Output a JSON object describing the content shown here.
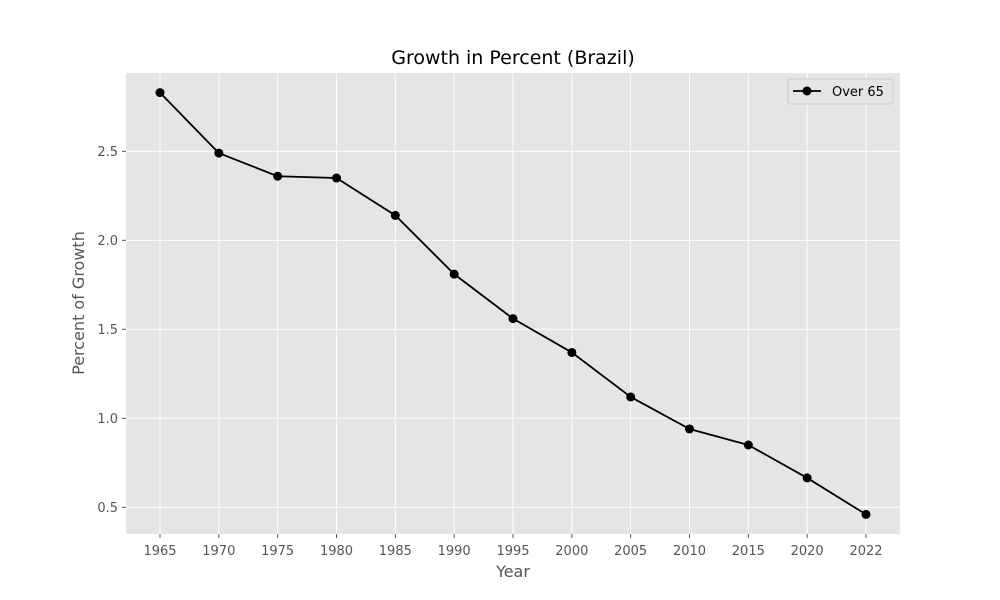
{
  "chart_data": {
    "type": "line",
    "title": "Growth in Percent (Brazil)",
    "xlabel": "Year",
    "ylabel": "Percent of Growth",
    "categories": [
      "1965",
      "1970",
      "1975",
      "1980",
      "1985",
      "1990",
      "1995",
      "2000",
      "2005",
      "2010",
      "2015",
      "2020",
      "2022"
    ],
    "series": [
      {
        "name": "Over 65",
        "values": [
          2.83,
          2.49,
          2.36,
          2.35,
          2.14,
          1.81,
          1.56,
          1.37,
          1.12,
          0.94,
          0.85,
          0.665,
          0.46
        ],
        "color": "#000000",
        "marker": "circle"
      }
    ],
    "yticks": [
      "0.5",
      "1.0",
      "1.5",
      "2.0",
      "2.5"
    ],
    "ylim": [
      0.35,
      2.94
    ],
    "grid": true,
    "legend": "top-right",
    "background_color": "#e5e5e5",
    "grid_color": "#ffffff"
  }
}
